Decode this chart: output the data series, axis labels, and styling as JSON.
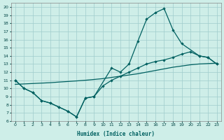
{
  "xlabel": "Humidex (Indice chaleur)",
  "bg_color": "#ceeee8",
  "grid_color": "#a0cccc",
  "line_color": "#006060",
  "xlim": [
    -0.5,
    23.5
  ],
  "ylim": [
    6,
    20.5
  ],
  "xticks": [
    0,
    1,
    2,
    3,
    4,
    5,
    6,
    7,
    8,
    9,
    10,
    11,
    12,
    13,
    14,
    15,
    16,
    17,
    18,
    19,
    20,
    21,
    22,
    23
  ],
  "yticks": [
    6,
    7,
    8,
    9,
    10,
    11,
    12,
    13,
    14,
    15,
    16,
    17,
    18,
    19,
    20
  ],
  "line1_x": [
    0,
    1,
    2,
    3,
    4,
    5,
    6,
    7,
    8,
    9,
    11,
    12,
    13,
    14,
    15,
    16,
    17,
    18,
    19,
    21,
    22,
    23
  ],
  "line1_y": [
    11,
    10,
    9.5,
    8.5,
    8.2,
    7.7,
    7.2,
    6.5,
    8.8,
    9.0,
    12.5,
    12.0,
    13.0,
    15.8,
    18.5,
    19.3,
    19.8,
    17.2,
    15.5,
    14.0,
    13.8,
    13.0
  ],
  "line2_x": [
    0,
    1,
    2,
    3,
    4,
    5,
    6,
    7,
    8,
    9,
    10,
    11,
    12,
    13,
    14,
    15,
    16,
    17,
    18,
    19,
    20,
    21,
    22,
    23
  ],
  "line2_y": [
    11,
    10,
    9.5,
    8.5,
    8.2,
    7.7,
    7.2,
    6.5,
    8.8,
    9.0,
    10.3,
    11.0,
    11.5,
    12.0,
    12.5,
    13.0,
    13.3,
    13.5,
    13.8,
    14.2,
    14.5,
    14.0,
    13.8,
    13.0
  ],
  "line3_x": [
    0,
    1,
    2,
    3,
    4,
    5,
    6,
    7,
    8,
    9,
    10,
    11,
    12,
    13,
    14,
    15,
    16,
    17,
    18,
    19,
    20,
    21,
    22,
    23
  ],
  "line3_y": [
    10.5,
    10.55,
    10.6,
    10.65,
    10.7,
    10.78,
    10.85,
    10.92,
    11.0,
    11.1,
    11.2,
    11.35,
    11.5,
    11.65,
    11.8,
    12.0,
    12.2,
    12.4,
    12.6,
    12.75,
    12.9,
    13.0,
    13.05,
    13.1
  ]
}
